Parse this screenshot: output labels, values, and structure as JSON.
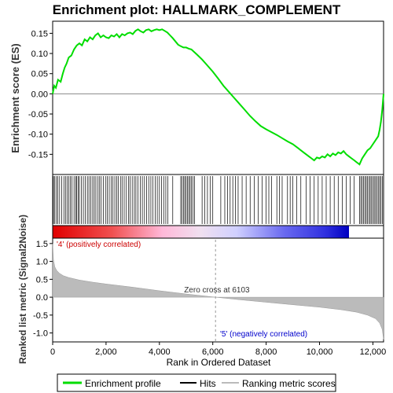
{
  "chart_data": {
    "type": "line",
    "title": "Enrichment plot: HALLMARK_COMPLEMENT",
    "top_panel": {
      "ylabel": "Enrichment score (ES)",
      "ylim": [
        -0.2,
        0.18
      ],
      "yticks": [
        -0.15,
        -0.1,
        -0.05,
        0.0,
        0.05,
        0.1,
        0.15
      ],
      "ytick_labels": [
        "-0.15",
        "-0.10",
        "-0.05",
        "0.00",
        "0.05",
        "0.10",
        "0.15"
      ],
      "series": [
        {
          "name": "Enrichment profile",
          "color": "#00dd00",
          "x": [
            0,
            60,
            120,
            200,
            300,
            380,
            450,
            520,
            600,
            700,
            800,
            900,
            1000,
            1100,
            1200,
            1300,
            1400,
            1500,
            1600,
            1700,
            1800,
            1900,
            2000,
            2100,
            2200,
            2300,
            2400,
            2500,
            2600,
            2700,
            2800,
            2900,
            3000,
            3100,
            3200,
            3300,
            3400,
            3500,
            3600,
            3700,
            3800,
            3900,
            4000,
            4100,
            4200,
            4300,
            4400,
            4500,
            4600,
            4700,
            4800,
            4900,
            5000,
            5100,
            5200,
            5400,
            5600,
            5800,
            6000,
            6200,
            6400,
            6600,
            6800,
            7000,
            7200,
            7400,
            7600,
            7800,
            8000,
            8200,
            8400,
            8600,
            8800,
            9000,
            9200,
            9400,
            9600,
            9700,
            9800,
            9900,
            10000,
            10100,
            10200,
            10300,
            10400,
            10500,
            10600,
            10700,
            10800,
            10900,
            11000,
            11100,
            11200,
            11300,
            11400,
            11500,
            11600,
            11700,
            11800,
            11900,
            12000,
            12100,
            12200,
            12250,
            12300,
            12350,
            12400
          ],
          "y": [
            0.0,
            0.02,
            0.015,
            0.035,
            0.03,
            0.05,
            0.065,
            0.075,
            0.09,
            0.095,
            0.11,
            0.12,
            0.125,
            0.12,
            0.135,
            0.13,
            0.14,
            0.135,
            0.145,
            0.15,
            0.14,
            0.145,
            0.14,
            0.138,
            0.145,
            0.142,
            0.148,
            0.14,
            0.148,
            0.145,
            0.15,
            0.152,
            0.148,
            0.156,
            0.16,
            0.155,
            0.152,
            0.158,
            0.16,
            0.155,
            0.158,
            0.16,
            0.158,
            0.16,
            0.156,
            0.152,
            0.145,
            0.138,
            0.13,
            0.122,
            0.118,
            0.115,
            0.115,
            0.112,
            0.11,
            0.098,
            0.085,
            0.07,
            0.055,
            0.038,
            0.02,
            0.005,
            -0.01,
            -0.025,
            -0.04,
            -0.055,
            -0.068,
            -0.08,
            -0.088,
            -0.095,
            -0.102,
            -0.11,
            -0.118,
            -0.125,
            -0.135,
            -0.145,
            -0.155,
            -0.16,
            -0.165,
            -0.158,
            -0.16,
            -0.155,
            -0.158,
            -0.15,
            -0.155,
            -0.148,
            -0.152,
            -0.145,
            -0.148,
            -0.142,
            -0.15,
            -0.155,
            -0.16,
            -0.165,
            -0.17,
            -0.175,
            -0.16,
            -0.15,
            -0.14,
            -0.135,
            -0.125,
            -0.115,
            -0.105,
            -0.09,
            -0.07,
            -0.04,
            0.0
          ]
        }
      ]
    },
    "hits_panel": {
      "legend": "Hits",
      "hit_positions": [
        30,
        80,
        140,
        190,
        260,
        340,
        420,
        480,
        540,
        600,
        660,
        720,
        800,
        860,
        900,
        960,
        1000,
        1080,
        1150,
        1220,
        1300,
        1360,
        1430,
        1500,
        1560,
        1620,
        1700,
        1760,
        1820,
        1900,
        1980,
        2050,
        2120,
        2200,
        2260,
        2330,
        2400,
        2460,
        2540,
        2600,
        2680,
        2760,
        2840,
        2900,
        2980,
        3060,
        3120,
        3200,
        3280,
        3360,
        3440,
        3520,
        3600,
        3680,
        3760,
        3840,
        3920,
        4000,
        4080,
        4160,
        4240,
        4320,
        4500,
        4800,
        4850,
        4900,
        4950,
        5000,
        5050,
        5100,
        5150,
        5200,
        5260,
        5320,
        5600,
        5700,
        5800,
        5900,
        6000,
        6300,
        6450,
        6550,
        6650,
        6750,
        6850,
        6950,
        7100,
        7250,
        7400,
        7550,
        7700,
        7850,
        8000,
        8100,
        8200,
        8400,
        8500,
        8600,
        8800,
        8900,
        9000,
        9150,
        9300,
        9500,
        9650,
        9800,
        9950,
        10100,
        10250,
        10400,
        10550,
        10700,
        10850,
        11000,
        11150,
        11300,
        11500,
        11550,
        11600,
        11650,
        11700,
        11750,
        11800,
        11850,
        11900,
        11950,
        12000,
        12050,
        12100,
        12150,
        12200,
        12250,
        12300,
        12350,
        12400
      ]
    },
    "metric_panel": {
      "ylabel": "Ranked list metric (Signal2Noise)",
      "xlabel": "Rank in Ordered Dataset",
      "ylim": [
        -1.25,
        1.65
      ],
      "yticks": [
        -1.0,
        -0.5,
        0.0,
        0.5,
        1.0,
        1.5
      ],
      "ytick_labels": [
        "-1.0",
        "-0.5",
        "0.0",
        "0.5",
        "1.0",
        "1.5"
      ],
      "x": [
        0,
        30,
        80,
        150,
        250,
        400,
        600,
        1000,
        1500,
        2000,
        3000,
        4000,
        5000,
        6103,
        7000,
        8000,
        9000,
        10000,
        10800,
        11400,
        11800,
        12100,
        12250,
        12350,
        12400
      ],
      "y": [
        1.5,
        1.05,
        0.85,
        0.75,
        0.67,
        0.6,
        0.55,
        0.48,
        0.42,
        0.37,
        0.28,
        0.18,
        0.09,
        0.0,
        -0.07,
        -0.14,
        -0.21,
        -0.28,
        -0.35,
        -0.42,
        -0.5,
        -0.6,
        -0.72,
        -0.9,
        -1.18
      ]
    },
    "x_axis": {
      "xlim": [
        0,
        12400
      ],
      "xticks": [
        0,
        2000,
        4000,
        6000,
        8000,
        10000,
        12000
      ],
      "xtick_labels": [
        "0",
        "2,000",
        "4,000",
        "6,000",
        "8,000",
        "10,000",
        "12,000"
      ]
    },
    "annotations": {
      "zero_cross": "Zero cross at 6103",
      "zero_cross_x": 6103,
      "positive": "'4' (positively correlated)",
      "negative": "'5' (negatively correlated)"
    },
    "legend": {
      "placement": "bottom",
      "entries": [
        "Enrichment profile",
        "Hits",
        "Ranking metric scores"
      ]
    },
    "colors": {
      "profile": "#00dd00",
      "positive_text": "#cc0000",
      "negative_text": "#0000cc",
      "metric_fill": "#bbbbbb"
    }
  }
}
